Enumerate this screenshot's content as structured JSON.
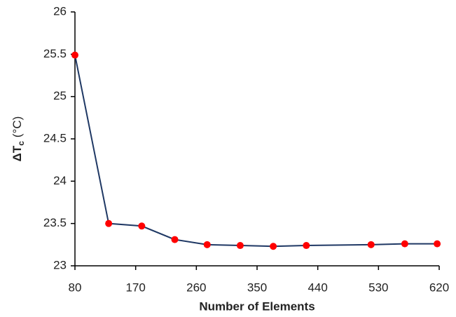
{
  "chart_data": {
    "type": "line",
    "x_label": "Number of Elements",
    "y_label": {
      "main": "ΔT",
      "sub": "c",
      "unit": "(°C)"
    },
    "x": [
      80,
      130,
      179,
      228,
      276,
      325,
      374,
      423,
      519,
      569,
      617
    ],
    "series": [
      {
        "color": "#1f3864",
        "marker_color": "#ff0000",
        "values": [
          25.49,
          23.5,
          23.47,
          23.31,
          23.25,
          23.24,
          23.23,
          23.24,
          23.25,
          23.26,
          23.26
        ]
      }
    ],
    "xlim": [
      80,
      620
    ],
    "xticks": [
      80,
      170,
      260,
      350,
      440,
      530,
      620
    ],
    "ylim": [
      23,
      26
    ],
    "yticks": [
      23,
      23.5,
      24,
      24.5,
      25,
      25.5,
      26
    ],
    "grid": false
  }
}
